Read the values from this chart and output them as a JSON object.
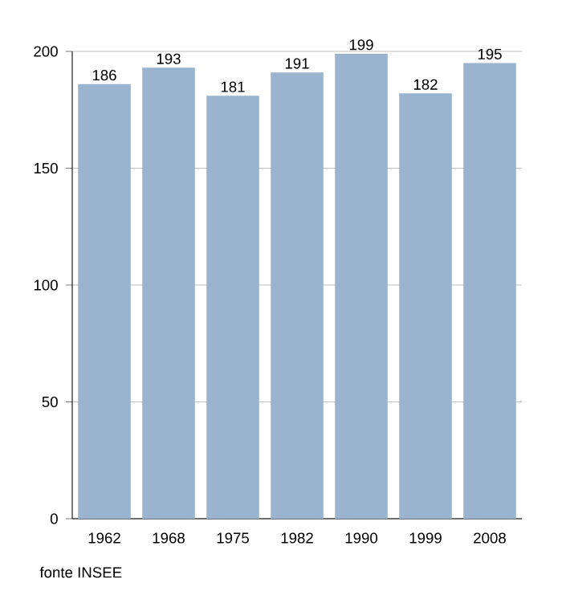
{
  "chart_data": {
    "type": "bar",
    "categories": [
      "1962",
      "1968",
      "1975",
      "1982",
      "1990",
      "1999",
      "2008"
    ],
    "values": [
      186,
      193,
      181,
      191,
      199,
      182,
      195
    ],
    "color": "#9ab3cf",
    "ylim": [
      0,
      200
    ],
    "yticks": [
      0,
      50,
      100,
      150,
      200
    ],
    "grid": "y",
    "data_labels": true,
    "annotations": [
      "fonte INSEE"
    ]
  }
}
